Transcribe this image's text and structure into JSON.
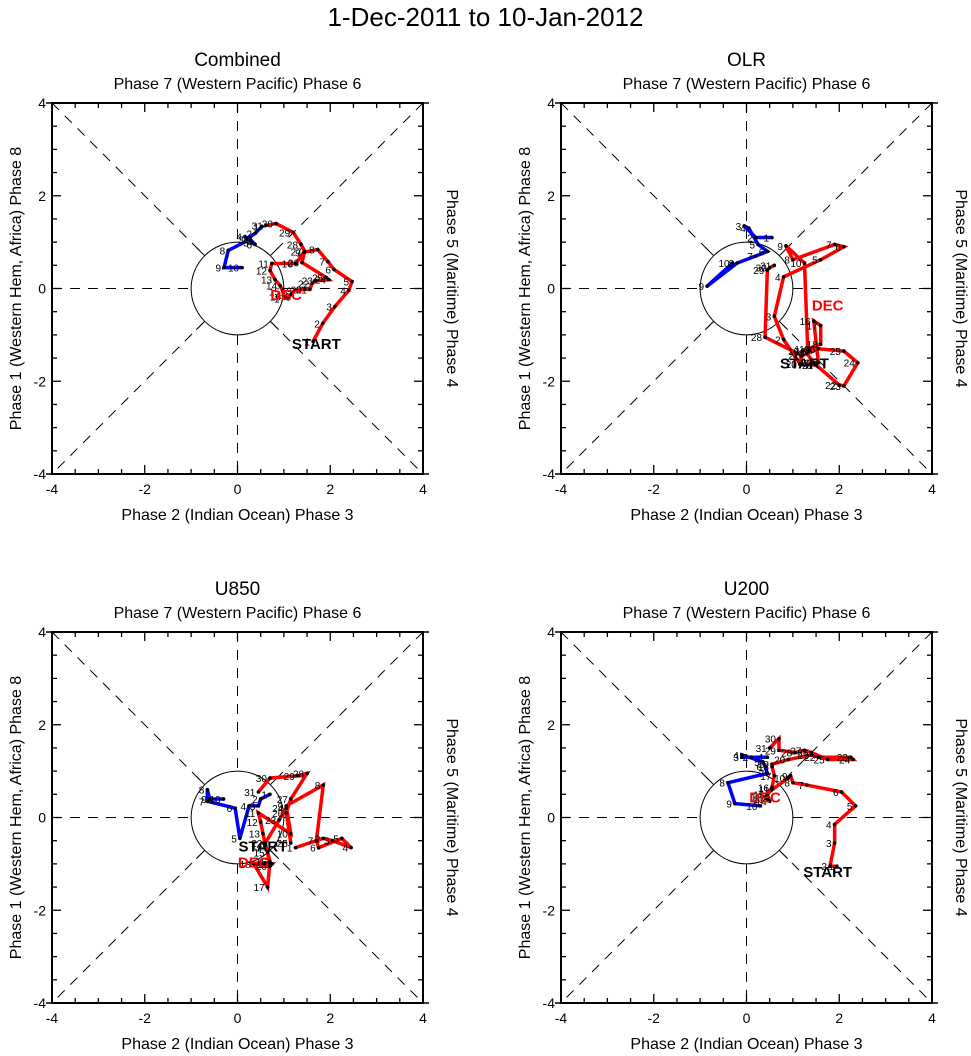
{
  "title": "1-Dec-2011 to 10-Jan-2012",
  "chart_data": [
    {
      "type": "line",
      "title": "Combined",
      "top_label": "Phase 7 (Western Pacific) Phase 6",
      "bottom_label": "Phase 2 (Indian Ocean) Phase 3",
      "left_label": "Phase 1 (Western Hem, Africa) Phase 8",
      "right_label": "Phase 5 (Maritime) Phase 4",
      "xlim": [
        -4,
        4
      ],
      "ylim": [
        -4,
        4
      ],
      "xticks": [
        "-4",
        "-2",
        "0",
        "2",
        "4"
      ],
      "yticks": [
        "-4",
        "-2",
        "0",
        "2",
        "4"
      ],
      "start_label": "START",
      "month_label": "DEC",
      "start_label_pos": [
        1.7,
        -1.18
      ],
      "month_label_pos": [
        1.05,
        -0.12
      ],
      "series": [
        {
          "name": "December",
          "color": "#ff0000",
          "days": [
            1,
            2,
            3,
            4,
            5,
            6,
            7,
            8,
            9,
            10,
            11,
            12,
            13,
            14,
            15,
            16,
            17,
            18,
            19,
            20,
            21,
            22,
            23,
            24,
            25,
            26,
            27,
            28,
            29,
            30,
            31
          ],
          "x": [
            1.63,
            1.84,
            2.1,
            2.4,
            2.47,
            2.08,
            1.95,
            1.73,
            1.43,
            1.26,
            0.74,
            0.7,
            0.81,
            0.92,
            0.98,
            1.0,
            1.09,
            1.15,
            1.24,
            1.45,
            1.56,
            1.61,
            1.69,
            1.97,
            1.91,
            1.39,
            1.45,
            1.37,
            1.2,
            0.83,
            0.61
          ],
          "y": [
            -1.14,
            -0.75,
            -0.39,
            -0.04,
            0.15,
            0.41,
            0.58,
            0.84,
            0.78,
            0.54,
            0.54,
            0.39,
            0.19,
            0.06,
            -0.06,
            -0.17,
            -0.22,
            -0.13,
            -0.04,
            -0.02,
            -0.02,
            0.11,
            0.17,
            0.19,
            0.24,
            0.56,
            0.8,
            0.95,
            1.21,
            1.4,
            1.36
          ]
        },
        {
          "name": "January",
          "color": "#0000ff",
          "days": [
            1,
            2,
            3,
            4,
            5,
            6,
            7,
            8,
            9,
            10
          ],
          "x": [
            0.53,
            0.38,
            0.2,
            0.16,
            0.31,
            0.38,
            0.27,
            -0.2,
            -0.29,
            0.1
          ],
          "y": [
            1.34,
            1.19,
            1.06,
            1.12,
            0.99,
            0.95,
            1.06,
            0.82,
            0.45,
            0.45
          ]
        }
      ]
    },
    {
      "type": "line",
      "title": "OLR",
      "top_label": "Phase 7 (Western Pacific) Phase 6",
      "bottom_label": "Phase 2 (Indian Ocean) Phase 3",
      "left_label": "Phase 1 (Western Hem, Africa) Phase 8",
      "right_label": "Phase 5 (Maritime) Phase 4",
      "xlim": [
        -4,
        4
      ],
      "ylim": [
        -4,
        4
      ],
      "xticks": [
        "-4",
        "-2",
        "0",
        "2",
        "4"
      ],
      "yticks": [
        "-4",
        "-2",
        "0",
        "2",
        "4"
      ],
      "start_label": "START",
      "month_label": "DEC",
      "start_label_pos": [
        1.25,
        -1.6
      ],
      "month_label_pos": [
        1.75,
        -0.35
      ],
      "series": [
        {
          "name": "December",
          "color": "#ff0000",
          "days": [
            1,
            2,
            3,
            4,
            5,
            6,
            7,
            8,
            9,
            10,
            11,
            12,
            13,
            14,
            15,
            16,
            17,
            18,
            19,
            20,
            21,
            22,
            23,
            24,
            25,
            26,
            27,
            28,
            29,
            30,
            31
          ],
          "x": [
            1.15,
            0.8,
            0.6,
            0.8,
            1.6,
            2.1,
            1.9,
            1.0,
            0.85,
            1.25,
            1.32,
            1.35,
            1.3,
            1.45,
            1.55,
            1.45,
            1.6,
            1.6,
            1.2,
            1.15,
            1.5,
            2.0,
            2.1,
            2.4,
            2.1,
            1.55,
            1.2,
            0.4,
            0.45,
            0.5,
            0.6
          ],
          "y": [
            -1.62,
            -1.1,
            -0.6,
            0.25,
            0.62,
            0.9,
            0.95,
            0.62,
            0.92,
            0.55,
            -1.3,
            -1.35,
            -1.4,
            -1.6,
            -1.6,
            -0.7,
            -0.8,
            -1.2,
            -1.35,
            -1.63,
            -1.65,
            -2.08,
            -2.1,
            -1.6,
            -1.35,
            -1.3,
            -1.45,
            -1.05,
            0.4,
            0.45,
            0.5
          ]
        },
        {
          "name": "January",
          "color": "#0000ff",
          "days": [
            1,
            2,
            3,
            4,
            5,
            6,
            7,
            8,
            9,
            10
          ],
          "x": [
            0.55,
            0.2,
            -0.05,
            0.05,
            0.25,
            0.45,
            0.2,
            -0.2,
            -0.85,
            -0.3
          ],
          "y": [
            1.1,
            1.1,
            1.35,
            1.3,
            0.95,
            0.8,
            0.7,
            0.55,
            0.05,
            0.55
          ]
        }
      ]
    },
    {
      "type": "line",
      "title": "U850",
      "top_label": "Phase 7 (Western Pacific) Phase 6",
      "bottom_label": "Phase 2 (Indian Ocean) Phase 3",
      "left_label": "Phase 1 (Western Hem, Africa) Phase 8",
      "right_label": "Phase 5 (Maritime) Phase 4",
      "xlim": [
        -4,
        4
      ],
      "ylim": [
        -4,
        4
      ],
      "xticks": [
        "-4",
        "-2",
        "0",
        "2",
        "4"
      ],
      "yticks": [
        "-4",
        "-2",
        "0",
        "2",
        "4"
      ],
      "start_label": "START",
      "month_label": "DEC",
      "start_label_pos": [
        0.55,
        -0.6
      ],
      "month_label_pos": [
        0.35,
        -0.95
      ],
      "series": [
        {
          "name": "December",
          "color": "#ff0000",
          "days": [
            1,
            2,
            3,
            4,
            5,
            6,
            7,
            8,
            9,
            10,
            11,
            12,
            13,
            14,
            15,
            16,
            17,
            18,
            19,
            20,
            21,
            22,
            23,
            24,
            25,
            26,
            27,
            28,
            29,
            30,
            31
          ],
          "x": [
            1.25,
            1.85,
            2.05,
            2.45,
            2.25,
            1.75,
            1.7,
            1.85,
            1.05,
            1.15,
            0.45,
            0.5,
            0.55,
            0.6,
            0.65,
            0.7,
            0.65,
            0.35,
            0.75,
            0.7,
            0.7,
            0.6,
            0.9,
            1.05,
            1.15,
            1.05,
            1.15,
            1.5,
            1.3,
            0.7,
            0.45
          ],
          "y": [
            -0.65,
            -0.45,
            -0.5,
            -0.65,
            -0.45,
            -0.65,
            -0.5,
            0.7,
            0.25,
            -0.35,
            0.1,
            -0.1,
            -0.35,
            -0.6,
            -0.75,
            -0.95,
            -1.5,
            -1.0,
            -1.0,
            -1.05,
            -1.0,
            -0.55,
            -0.05,
            0.2,
            -0.55,
            0.1,
            0.4,
            0.95,
            0.9,
            0.85,
            0.55
          ]
        },
        {
          "name": "January",
          "color": "#0000ff",
          "days": [
            1,
            2,
            3,
            4,
            5,
            6,
            7,
            8,
            9,
            10
          ],
          "x": [
            0.7,
            0.5,
            0.45,
            0.25,
            0.05,
            -0.05,
            -0.65,
            -0.65,
            -0.6,
            -0.3
          ],
          "y": [
            0.5,
            0.4,
            0.25,
            0.25,
            -0.45,
            0.2,
            0.35,
            0.6,
            0.4,
            0.4
          ]
        }
      ]
    },
    {
      "type": "line",
      "title": "U200",
      "top_label": "Phase 7 (Western Pacific) Phase 6",
      "bottom_label": "Phase 2 (Indian Ocean) Phase 3",
      "left_label": "Phase 1 (Western Hem, Africa) Phase 8",
      "right_label": "Phase 5 (Maritime) Phase 4",
      "xlim": [
        -4,
        4
      ],
      "ylim": [
        -4,
        4
      ],
      "xticks": [
        "-4",
        "-2",
        "0",
        "2",
        "4"
      ],
      "yticks": [
        "-4",
        "-2",
        "0",
        "2",
        "4"
      ],
      "start_label": "START",
      "month_label": "DEC",
      "start_label_pos": [
        1.75,
        -1.15
      ],
      "month_label_pos": [
        0.4,
        0.45
      ],
      "series": [
        {
          "name": "December",
          "color": "#ff0000",
          "days": [
            1,
            2,
            3,
            4,
            5,
            6,
            7,
            8,
            9,
            10,
            11,
            12,
            13,
            14,
            15,
            16,
            17,
            18,
            19,
            20,
            21,
            22,
            23,
            24,
            25,
            26,
            27,
            28,
            29,
            30,
            31
          ],
          "x": [
            1.95,
            1.8,
            1.9,
            1.9,
            2.35,
            2.05,
            1.3,
            1.0,
            0.95,
            0.9,
            0.55,
            0.4,
            0.45,
            0.5,
            0.45,
            0.55,
            0.6,
            0.55,
            0.55,
            0.9,
            1.4,
            1.55,
            2.25,
            2.3,
            1.75,
            1.4,
            1.25,
            1.05,
            0.7,
            0.7,
            0.5
          ],
          "y": [
            -1.05,
            -1.05,
            -0.55,
            -0.15,
            0.25,
            0.55,
            0.7,
            0.75,
            0.9,
            0.85,
            0.6,
            0.45,
            0.4,
            0.35,
            0.5,
            0.65,
            0.9,
            1.1,
            1.15,
            1.25,
            1.35,
            1.3,
            1.3,
            1.25,
            1.25,
            1.4,
            1.45,
            1.4,
            1.45,
            1.7,
            1.5
          ]
        },
        {
          "name": "January",
          "color": "#0000ff",
          "days": [
            1,
            2,
            3,
            4,
            5,
            6,
            7,
            8,
            9,
            10
          ],
          "x": [
            0.45,
            0.1,
            -0.1,
            -0.1,
            0.35,
            0.4,
            0.45,
            -0.4,
            -0.25,
            0.3
          ],
          "y": [
            1.3,
            1.3,
            1.3,
            1.35,
            1.2,
            1.1,
            0.95,
            0.75,
            0.3,
            0.25
          ]
        }
      ]
    }
  ]
}
